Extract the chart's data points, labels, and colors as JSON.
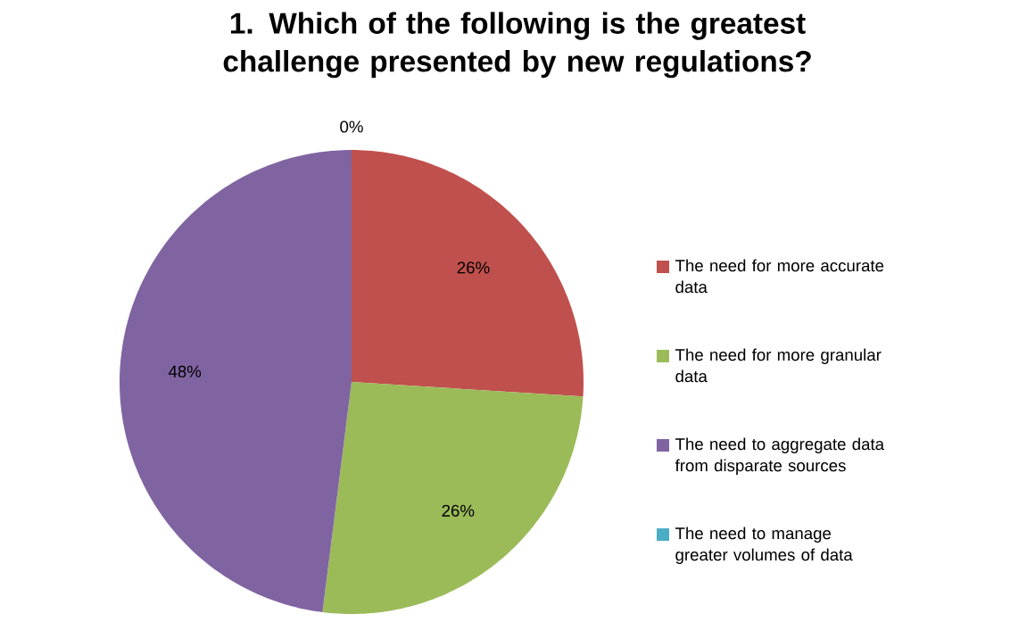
{
  "chart_data": {
    "type": "pie",
    "title": "1. Which of the following is the greatest challenge presented by new regulations?",
    "categories": [
      "The need for more accurate data",
      "The need for more granular data",
      "The need to aggregate data from disparate sources",
      "The need to manage greater volumes of data"
    ],
    "values": [
      26,
      26,
      48,
      0
    ],
    "value_labels": [
      "26%",
      "26%",
      "48%",
      "0%"
    ],
    "colors": [
      "#c0504d",
      "#9bbb59",
      "#8064a2",
      "#4bacc6"
    ],
    "legend": "right"
  }
}
